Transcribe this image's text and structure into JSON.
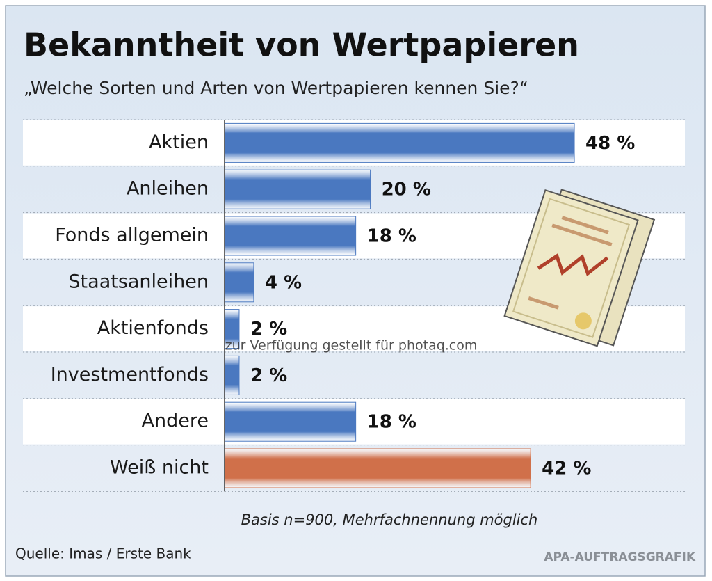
{
  "chart_data": {
    "type": "bar",
    "orientation": "horizontal",
    "title": "Bekanntheit von Wertpapieren",
    "subtitle": "„Welche Sorten und Arten von Wertpapieren kennen Sie?“",
    "categories": [
      "Aktien",
      "Anleihen",
      "Fonds allgemein",
      "Staatsanleihen",
      "Aktienfonds",
      "Investmentfonds",
      "Andere",
      "Weiß nicht"
    ],
    "values": [
      48,
      20,
      18,
      4,
      2,
      2,
      18,
      42
    ],
    "value_labels": [
      "48 %",
      "20 %",
      "18 %",
      "4 %",
      "2 %",
      "2 %",
      "18 %",
      "42 %"
    ],
    "colors": [
      "#4a78c0",
      "#4a78c0",
      "#4a78c0",
      "#4a78c0",
      "#4a78c0",
      "#4a78c0",
      "#4a78c0",
      "#d0704a"
    ],
    "note": "Basis n=900, Mehrfachnennung möglich",
    "source": "Quelle: Imas / Erste Bank",
    "credit": "APA-AUFTRAGSGRAFIK",
    "watermark": "zur Verfügung gestellt für photaq.com"
  }
}
